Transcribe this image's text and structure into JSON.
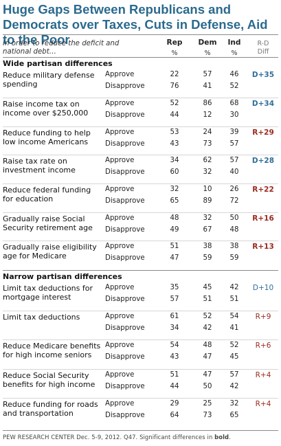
{
  "title": "Huge Gaps Between Republicans and Democrats over Taxes, Cuts in Defense, Aid to the Poor",
  "subtitle": "In order to reduce the deficit and national debt…",
  "columns": {
    "rep": "Rep",
    "dem": "Dem",
    "ind": "Ind",
    "pct": "%",
    "diff_line1": "R-D",
    "diff_line2": "Diff"
  },
  "response_labels": {
    "approve": "Approve",
    "disapprove": "Disapprove"
  },
  "colors": {
    "title": "#2b6a8e",
    "dem_diff": "#2f6f9a",
    "rep_diff": "#9b2a1f"
  },
  "chart_data": {
    "type": "table",
    "title": "Huge Gaps Between Republicans and Democrats over Taxes, Cuts in Defense, Aid to the Poor",
    "columns": [
      "Rep",
      "Dem",
      "Ind",
      "R-D Diff"
    ],
    "sections": [
      {
        "name": "Wide partisan differences",
        "items": [
          {
            "label": "Reduce military defense spending",
            "approve": [
              22,
              57,
              46
            ],
            "disapprove": [
              76,
              41,
              52
            ],
            "diff": "D+35",
            "party": "D",
            "significant": true
          },
          {
            "label": "Raise income tax on income over $250,000",
            "approve": [
              52,
              86,
              68
            ],
            "disapprove": [
              44,
              12,
              30
            ],
            "diff": "D+34",
            "party": "D",
            "significant": true
          },
          {
            "label": "Reduce funding to help low income Americans",
            "approve": [
              53,
              24,
              39
            ],
            "disapprove": [
              43,
              73,
              57
            ],
            "diff": "R+29",
            "party": "R",
            "significant": true
          },
          {
            "label": "Raise tax rate on investment income",
            "approve": [
              34,
              62,
              57
            ],
            "disapprove": [
              60,
              32,
              40
            ],
            "diff": "D+28",
            "party": "D",
            "significant": true
          },
          {
            "label": "Reduce federal funding for education",
            "approve": [
              32,
              10,
              26
            ],
            "disapprove": [
              65,
              89,
              72
            ],
            "diff": "R+22",
            "party": "R",
            "significant": true
          },
          {
            "label": "Gradually raise Social Security retirement age",
            "approve": [
              48,
              32,
              50
            ],
            "disapprove": [
              49,
              67,
              48
            ],
            "diff": "R+16",
            "party": "R",
            "significant": true
          },
          {
            "label": "Gradually raise eligibility age for Medicare",
            "approve": [
              51,
              38,
              38
            ],
            "disapprove": [
              47,
              59,
              59
            ],
            "diff": "R+13",
            "party": "R",
            "significant": true
          }
        ]
      },
      {
        "name": "Narrow partisan differences",
        "items": [
          {
            "label": "Limit tax deductions for mortgage interest",
            "approve": [
              35,
              45,
              42
            ],
            "disapprove": [
              57,
              51,
              51
            ],
            "diff": "D+10",
            "party": "D",
            "significant": false
          },
          {
            "label": "Limit tax deductions",
            "approve": [
              61,
              52,
              54
            ],
            "disapprove": [
              34,
              42,
              41
            ],
            "diff": "R+9",
            "party": "R",
            "significant": false
          },
          {
            "label": "Reduce Medicare benefits for high income seniors",
            "approve": [
              54,
              48,
              52
            ],
            "disapprove": [
              43,
              47,
              45
            ],
            "diff": "R+6",
            "party": "R",
            "significant": false
          },
          {
            "label": "Reduce Social Security benefits for high income",
            "approve": [
              51,
              47,
              57
            ],
            "disapprove": [
              44,
              50,
              42
            ],
            "diff": "R+4",
            "party": "R",
            "significant": false
          },
          {
            "label": "Reduce funding for roads and transportation",
            "approve": [
              29,
              25,
              32
            ],
            "disapprove": [
              64,
              73,
              65
            ],
            "diff": "R+4",
            "party": "R",
            "significant": false
          }
        ]
      }
    ]
  },
  "footer": {
    "source": "PEW RESEARCH CENTER Dec. 5-9, 2012. Q47. Significant differences in",
    "bold_word": "bold",
    "end": "."
  }
}
